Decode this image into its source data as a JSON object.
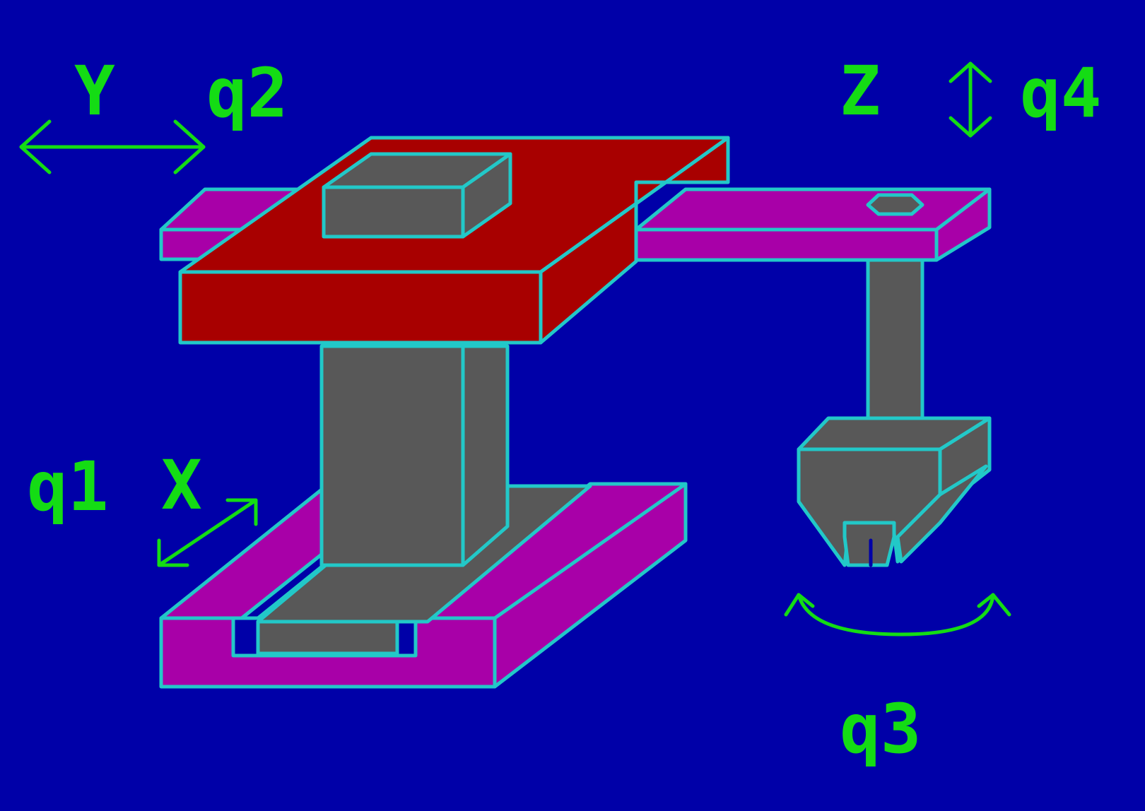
{
  "labels": {
    "y_axis": "Y",
    "x_axis": "X",
    "z_axis": "Z",
    "q1": "q1",
    "q2": "q2",
    "q3": "q3",
    "q4": "q4"
  },
  "colors": {
    "background": "#0000a8",
    "outline": "#22c8c8",
    "label": "#14dc14",
    "carriage": "#a80000",
    "rail": "#a800a8",
    "steel": "#585858"
  }
}
